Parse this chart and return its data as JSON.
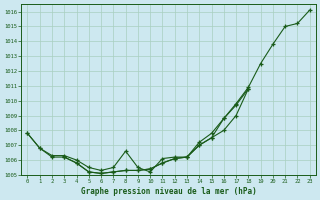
{
  "title": "Graphe pression niveau de la mer (hPa)",
  "bg_color": "#cde8f0",
  "grid_color": "#a8cfc0",
  "line_color": "#1a5c1a",
  "marker": "+",
  "xlim": [
    -0.5,
    23.5
  ],
  "ylim": [
    1005,
    1016.5
  ],
  "xticks": [
    0,
    1,
    2,
    3,
    4,
    5,
    6,
    7,
    8,
    9,
    10,
    11,
    12,
    13,
    14,
    15,
    16,
    17,
    18,
    19,
    20,
    21,
    22,
    23
  ],
  "yticks": [
    1005,
    1006,
    1007,
    1008,
    1009,
    1010,
    1011,
    1012,
    1013,
    1014,
    1015,
    1016
  ],
  "series": [
    {
      "x": [
        0,
        1,
        2,
        3,
        4,
        5,
        6,
        7,
        8,
        9,
        10,
        11,
        12,
        13,
        14,
        15,
        16,
        17,
        18,
        19,
        20,
        21,
        22,
        23
      ],
      "y": [
        1007.8,
        1006.8,
        1006.3,
        1006.3,
        1006.0,
        1005.5,
        1005.3,
        1005.5,
        1006.6,
        1005.5,
        1005.2,
        1006.1,
        1006.2,
        1006.2,
        1007.2,
        1007.8,
        1008.8,
        1009.8,
        1010.9,
        1012.5,
        1013.8,
        1015.0,
        1015.2,
        1016.1
      ]
    },
    {
      "x": [
        0,
        1,
        2,
        3,
        4,
        5,
        6,
        7,
        8,
        9,
        10,
        11,
        12,
        13,
        14,
        15,
        16,
        17,
        18
      ],
      "y": [
        1007.8,
        1006.8,
        1006.2,
        1006.2,
        1005.8,
        1005.2,
        1005.1,
        1005.2,
        1005.3,
        1005.3,
        1005.4,
        1005.8,
        1006.1,
        1006.2,
        1007.0,
        1007.5,
        1008.0,
        1009.0,
        1010.8
      ]
    },
    {
      "x": [
        3,
        4,
        5,
        6,
        7,
        8,
        9,
        10,
        11,
        12,
        13,
        14,
        15,
        16,
        17,
        18
      ],
      "y": [
        1006.2,
        1005.8,
        1005.2,
        1005.1,
        1005.2,
        1005.3,
        1005.3,
        1005.4,
        1005.8,
        1006.1,
        1006.2,
        1007.0,
        1007.5,
        1008.8,
        1009.7,
        1010.8
      ]
    }
  ]
}
